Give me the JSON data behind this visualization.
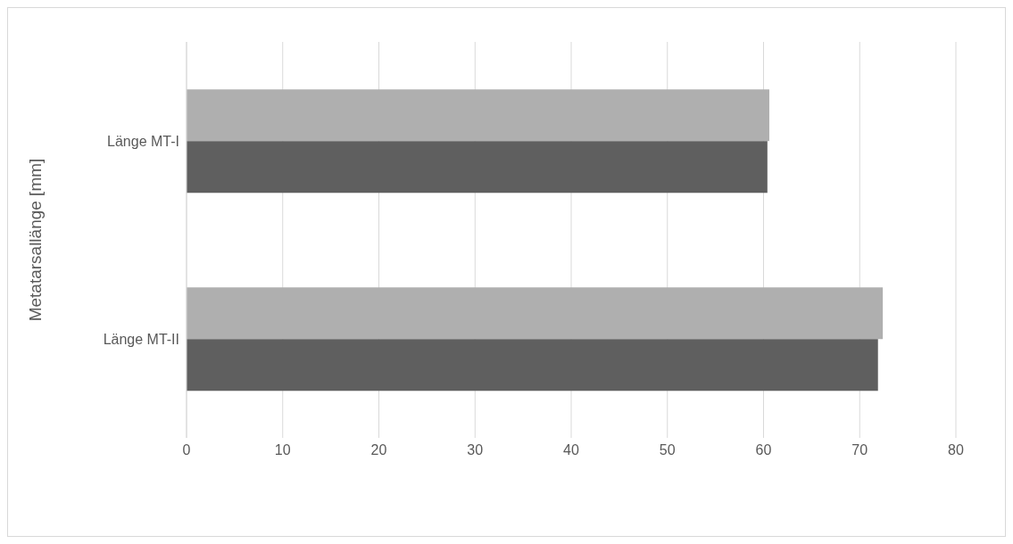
{
  "chart_data": {
    "type": "bar",
    "orientation": "horizontal",
    "ylabel": "Metatarsallänge [mm]",
    "categories": [
      "Länge MT-I",
      "Länge MT-II"
    ],
    "series": [
      {
        "color": "#afafaf",
        "values": [
          60.6,
          72.4
        ]
      },
      {
        "color": "#5f5f5f",
        "values": [
          60.4,
          71.9
        ]
      }
    ],
    "xlim": [
      0,
      80
    ],
    "xticks": [
      0,
      10,
      20,
      30,
      40,
      50,
      60,
      70,
      80
    ],
    "grid": "x",
    "legend": false
  }
}
